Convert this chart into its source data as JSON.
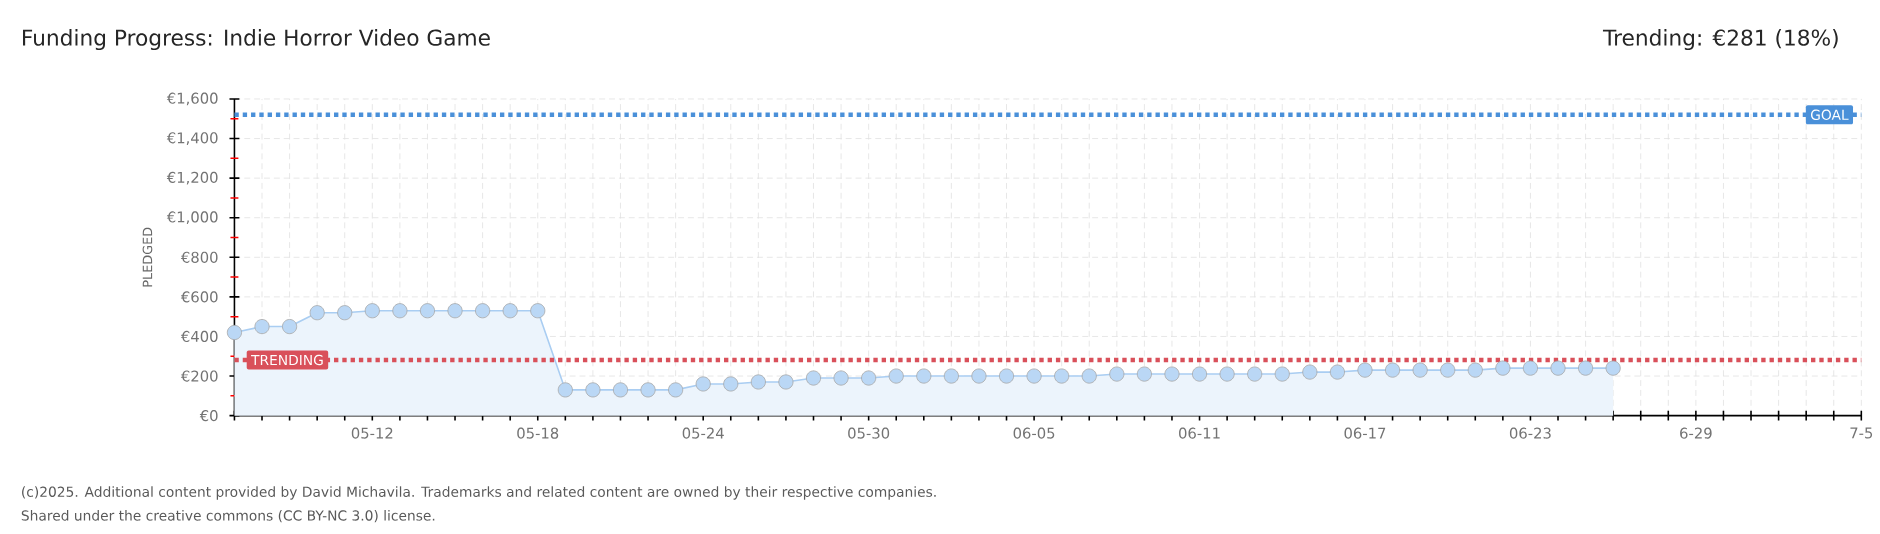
{
  "chart_data": {
    "type": "area",
    "title": "Funding Progress: Indie Horror Video Game",
    "ylabel": "PLEDGED",
    "annotations": [
      "Trending: €281 (18%)",
      "(c)2025. Additional content provided by David Michavila. Trademarks and related content are owned by their respective companies.",
      "Shared under the creative commons (CC BY-NC 3.0) license."
    ],
    "x": [
      "2025-05-07",
      "2025-05-08",
      "2025-05-09",
      "2025-05-10",
      "2025-05-11",
      "2025-05-12",
      "2025-05-13",
      "2025-05-14",
      "2025-05-15",
      "2025-05-16",
      "2025-05-17",
      "2025-05-18",
      "2025-05-19",
      "2025-05-20",
      "2025-05-21",
      "2025-05-22",
      "2025-05-23",
      "2025-05-24",
      "2025-05-25",
      "2025-05-26",
      "2025-05-27",
      "2025-05-28",
      "2025-05-29",
      "2025-05-30",
      "2025-05-31",
      "2025-06-01",
      "2025-06-02",
      "2025-06-03",
      "2025-06-04",
      "2025-06-05",
      "2025-06-06",
      "2025-06-07",
      "2025-06-08",
      "2025-06-09",
      "2025-06-10",
      "2025-06-11",
      "2025-06-12",
      "2025-06-13",
      "2025-06-14",
      "2025-06-15",
      "2025-06-16",
      "2025-06-17",
      "2025-06-18",
      "2025-06-19",
      "2025-06-20",
      "2025-06-21",
      "2025-06-22",
      "2025-06-23",
      "2025-06-24",
      "2025-06-25",
      "2025-06-26"
    ],
    "series": [
      {
        "color": "#a9cdf2",
        "values": [
          420,
          450,
          450,
          520,
          520,
          530,
          530,
          530,
          530,
          530,
          530,
          530,
          130,
          130,
          130,
          130,
          130,
          160,
          160,
          170,
          170,
          190,
          190,
          190,
          200,
          200,
          200,
          200,
          200,
          200,
          200,
          200,
          210,
          210,
          210,
          210,
          210,
          210,
          210,
          220,
          220,
          230,
          230,
          230,
          230,
          230,
          240,
          240,
          240,
          240,
          240
        ]
      }
    ],
    "marker": "circle",
    "xlim": [
      "2025-05-07",
      "2025-07-05"
    ],
    "xticks": [
      {
        "value": "2025-05-07",
        "label": null
      },
      {
        "value": "2025-05-08",
        "label": null
      },
      {
        "value": "2025-05-09",
        "label": null
      },
      {
        "value": "2025-05-10",
        "label": null
      },
      {
        "value": "2025-05-11",
        "label": null
      },
      {
        "value": "2025-05-12",
        "label": "05-12"
      },
      {
        "value": "2025-05-13",
        "label": null
      },
      {
        "value": "2025-05-14",
        "label": null
      },
      {
        "value": "2025-05-15",
        "label": null
      },
      {
        "value": "2025-05-16",
        "label": null
      },
      {
        "value": "2025-05-17",
        "label": null
      },
      {
        "value": "2025-05-18",
        "label": "05-18"
      },
      {
        "value": "2025-05-19",
        "label": null
      },
      {
        "value": "2025-05-20",
        "label": null
      },
      {
        "value": "2025-05-21",
        "label": null
      },
      {
        "value": "2025-05-22",
        "label": null
      },
      {
        "value": "2025-05-23",
        "label": null
      },
      {
        "value": "2025-05-24",
        "label": "05-24"
      },
      {
        "value": "2025-05-25",
        "label": null
      },
      {
        "value": "2025-05-26",
        "label": null
      },
      {
        "value": "2025-05-27",
        "label": null
      },
      {
        "value": "2025-05-28",
        "label": null
      },
      {
        "value": "2025-05-29",
        "label": null
      },
      {
        "value": "2025-05-30",
        "label": "05-30"
      },
      {
        "value": "2025-05-31",
        "label": null
      },
      {
        "value": "2025-06-01",
        "label": null
      },
      {
        "value": "2025-06-02",
        "label": null
      },
      {
        "value": "2025-06-03",
        "label": null
      },
      {
        "value": "2025-06-04",
        "label": null
      },
      {
        "value": "2025-06-05",
        "label": "06-05"
      },
      {
        "value": "2025-06-06",
        "label": null
      },
      {
        "value": "2025-06-07",
        "label": null
      },
      {
        "value": "2025-06-08",
        "label": null
      },
      {
        "value": "2025-06-09",
        "label": null
      },
      {
        "value": "2025-06-10",
        "label": null
      },
      {
        "value": "2025-06-11",
        "label": "06-11"
      },
      {
        "value": "2025-06-12",
        "label": null
      },
      {
        "value": "2025-06-13",
        "label": null
      },
      {
        "value": "2025-06-14",
        "label": null
      },
      {
        "value": "2025-06-15",
        "label": null
      },
      {
        "value": "2025-06-16",
        "label": null
      },
      {
        "value": "2025-06-17",
        "label": "06-17"
      },
      {
        "value": "2025-06-18",
        "label": null
      },
      {
        "value": "2025-06-19",
        "label": null
      },
      {
        "value": "2025-06-20",
        "label": null
      },
      {
        "value": "2025-06-21",
        "label": null
      },
      {
        "value": "2025-06-22",
        "label": null
      },
      {
        "value": "2025-06-23",
        "label": "06-23"
      },
      {
        "value": "2025-06-24",
        "label": null
      },
      {
        "value": "2025-06-25",
        "label": null
      },
      {
        "value": "2025-06-26",
        "label": null
      },
      {
        "value": "2025-06-27",
        "label": null
      },
      {
        "value": "2025-06-28",
        "label": null
      },
      {
        "value": "2025-06-29",
        "label": "6-29"
      },
      {
        "value": "2025-06-30",
        "label": null
      },
      {
        "value": "2025-07-01",
        "label": null
      },
      {
        "value": "2025-07-02",
        "label": null
      },
      {
        "value": "2025-07-03",
        "label": null
      },
      {
        "value": "2025-07-04",
        "label": null
      },
      {
        "value": "2025-07-05",
        "label": "7-5"
      }
    ],
    "ylim": [
      0,
      1600
    ],
    "yticks": [
      {
        "value": 0,
        "label": "€0"
      },
      {
        "value": 100,
        "label": null
      },
      {
        "value": 200,
        "label": "€200"
      },
      {
        "value": 300,
        "label": null
      },
      {
        "value": 400,
        "label": "€400"
      },
      {
        "value": 500,
        "label": null
      },
      {
        "value": 600,
        "label": "€600"
      },
      {
        "value": 700,
        "label": null
      },
      {
        "value": 800,
        "label": "€800"
      },
      {
        "value": 900,
        "label": null
      },
      {
        "value": 1000,
        "label": "€1,000"
      },
      {
        "value": 1100,
        "label": null
      },
      {
        "value": 1200,
        "label": "€1,200"
      },
      {
        "value": 1300,
        "label": null
      },
      {
        "value": 1400,
        "label": "€1,400"
      },
      {
        "value": 1500,
        "label": null
      },
      {
        "value": 1600,
        "label": "€1,600"
      }
    ],
    "grid": true,
    "ref_lines": [
      {
        "axis": "y",
        "value": 1520,
        "label": "GOAL",
        "color": "#4a90d9",
        "line_style": "dotted"
      },
      {
        "axis": "y",
        "value": 281,
        "label": "TRENDING",
        "color": "#d9505a",
        "line_style": "dotted"
      }
    ]
  }
}
